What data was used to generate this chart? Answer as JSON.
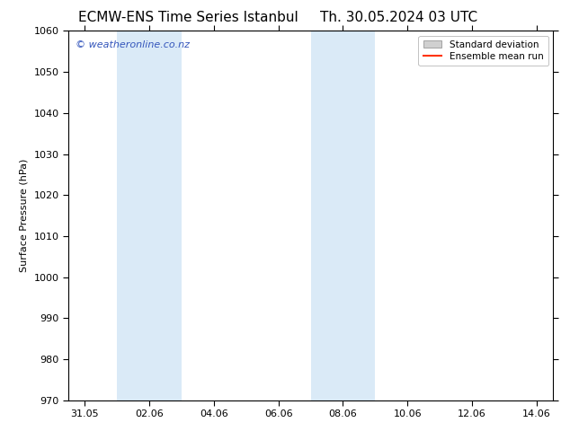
{
  "title_left": "ECMW-ENS Time Series Istanbul",
  "title_right": "Th. 30.05.2024 03 UTC",
  "ylabel": "Surface Pressure (hPa)",
  "ylim": [
    970,
    1060
  ],
  "yticks": [
    970,
    980,
    990,
    1000,
    1010,
    1020,
    1030,
    1040,
    1050,
    1060
  ],
  "xtick_labels": [
    "31.05",
    "02.06",
    "04.06",
    "06.06",
    "08.06",
    "10.06",
    "12.06",
    "14.06"
  ],
  "xtick_positions": [
    0,
    2,
    4,
    6,
    8,
    10,
    12,
    14
  ],
  "xlim": [
    -0.5,
    14.5
  ],
  "shaded_bands": [
    {
      "x_start": 1,
      "x_end": 3,
      "color": "#daeaf7"
    },
    {
      "x_start": 7,
      "x_end": 9,
      "color": "#daeaf7"
    }
  ],
  "watermark_text": "© weatheronline.co.nz",
  "watermark_color": "#3355bb",
  "legend_std_dev_label": "Standard deviation",
  "legend_std_dev_color": "#d0d0d0",
  "legend_mean_run_label": "Ensemble mean run",
  "legend_mean_run_color": "#ff3300",
  "background_color": "#ffffff",
  "plot_bg_color": "#ffffff",
  "title_fontsize": 11,
  "axis_label_fontsize": 8,
  "tick_fontsize": 8,
  "watermark_fontsize": 8,
  "legend_fontsize": 7.5
}
